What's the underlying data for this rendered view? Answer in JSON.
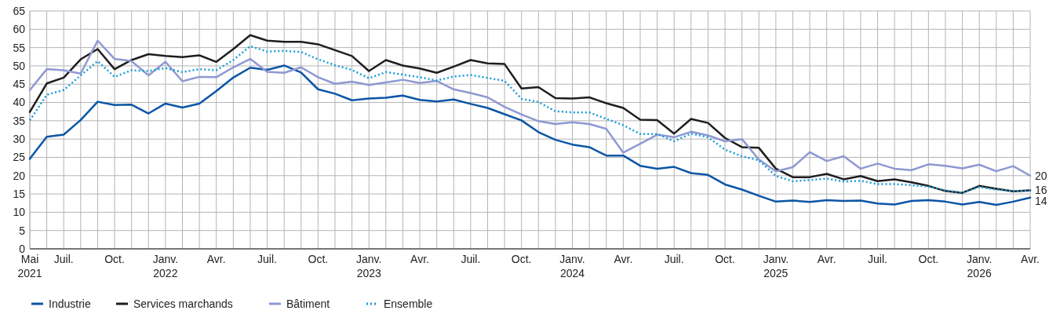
{
  "chart_data": {
    "type": "line",
    "categories": [
      "Mai\n2021",
      null,
      "Juil.",
      null,
      null,
      "Oct.",
      null,
      null,
      "Janv.\n2022",
      null,
      null,
      "Avr.",
      null,
      null,
      "Juil.",
      null,
      null,
      "Oct.",
      null,
      null,
      "Janv.\n2023",
      null,
      null,
      "Avr.",
      null,
      null,
      "Juil.",
      null,
      null,
      "Oct.",
      null,
      null,
      "Janv.\n2024",
      null,
      null,
      "Avr.",
      null,
      null,
      "Juil.",
      null,
      null,
      "Oct.",
      null,
      null,
      "Janv.\n2025",
      null,
      null,
      "Avr.",
      null,
      null,
      "Juil.",
      null,
      null,
      "Oct.",
      null,
      null,
      "Janv.\n2026",
      null,
      null,
      "Avr."
    ],
    "series": [
      {
        "name": "Industrie",
        "color": "#0b55a6",
        "values": [
          24.6,
          30.6,
          31.2,
          35.2,
          40.2,
          39.3,
          39.4,
          37.0,
          39.7,
          38.6,
          39.7,
          43.1,
          46.8,
          49.5,
          48.9,
          50.1,
          48.2,
          43.6,
          42.4,
          40.6,
          41.1,
          41.3,
          41.9,
          40.7,
          40.3,
          40.8,
          39.6,
          38.5,
          36.8,
          35.1,
          31.9,
          29.8,
          28.5,
          27.8,
          25.5,
          25.5,
          22.7,
          21.9,
          22.4,
          20.7,
          20.2,
          17.6,
          16.2,
          14.5,
          12.9,
          13.2,
          12.8,
          13.3,
          13.1,
          13.2,
          12.4,
          12.1,
          13.1,
          13.3,
          12.9,
          12.1,
          12.8,
          12.0,
          12.9,
          14
        ],
        "value_labels": [
          null,
          null,
          null,
          null,
          null,
          null,
          null,
          null,
          null,
          null,
          null,
          null,
          null,
          null,
          null,
          null,
          null,
          null,
          null,
          null,
          null,
          null,
          null,
          null,
          null,
          null,
          null,
          null,
          null,
          null,
          null,
          null,
          null,
          null,
          null,
          null,
          null,
          null,
          null,
          null,
          null,
          null,
          null,
          null,
          null,
          null,
          null,
          null,
          null,
          null,
          null,
          null,
          null,
          null,
          null,
          null,
          null,
          null,
          null,
          "14"
        ]
      },
      {
        "name": "Services marchands",
        "color": "#1e1e1e",
        "values": [
          37.4,
          45.2,
          46.8,
          51.8,
          54.6,
          49.1,
          51.6,
          53.2,
          52.7,
          52.4,
          52.9,
          51.1,
          54.6,
          58.4,
          56.9,
          56.6,
          56.6,
          55.9,
          54.3,
          52.7,
          48.6,
          51.6,
          50.1,
          49.3,
          48.1,
          49.8,
          51.6,
          50.7,
          50.5,
          43.8,
          44.2,
          41.2,
          41.1,
          41.4,
          39.8,
          38.5,
          35.3,
          35.2,
          31.5,
          35.5,
          34.4,
          30.3,
          27.8,
          27.6,
          21.9,
          19.6,
          19.6,
          20.5,
          19.0,
          19.9,
          18.5,
          19.0,
          18.2,
          17.2,
          15.8,
          15.3,
          17.2,
          16.4,
          15.7,
          16
        ],
        "value_labels": [
          null,
          null,
          null,
          null,
          null,
          null,
          null,
          null,
          null,
          null,
          null,
          null,
          null,
          null,
          null,
          null,
          null,
          null,
          null,
          null,
          null,
          null,
          null,
          null,
          null,
          null,
          null,
          null,
          null,
          null,
          null,
          null,
          null,
          null,
          null,
          null,
          null,
          null,
          null,
          null,
          null,
          null,
          null,
          null,
          null,
          null,
          null,
          null,
          null,
          null,
          null,
          null,
          null,
          null,
          null,
          null,
          null,
          null,
          null,
          "16"
        ]
      },
      {
        "name": "Bâtiment",
        "color": "#8e98d2",
        "values": [
          43.4,
          49.1,
          48.8,
          47.9,
          56.9,
          51.9,
          51.3,
          47.4,
          51.1,
          45.8,
          47.0,
          46.9,
          49.6,
          51.9,
          48.4,
          48.1,
          49.6,
          46.9,
          45.1,
          45.7,
          44.8,
          45.5,
          46.2,
          45.3,
          45.9,
          43.6,
          42.6,
          41.4,
          38.8,
          36.7,
          34.9,
          34.1,
          34.6,
          34.1,
          32.8,
          26.3,
          28.7,
          31.2,
          30.5,
          32.0,
          31.0,
          29.4,
          30.0,
          24.4,
          21.2,
          22.3,
          26.4,
          24.0,
          25.3,
          21.9,
          23.3,
          21.9,
          21.5,
          23.1,
          22.7,
          22.0,
          23.0,
          21.2,
          22.6,
          20
        ],
        "value_labels": [
          null,
          null,
          null,
          null,
          null,
          null,
          null,
          null,
          null,
          null,
          null,
          null,
          null,
          null,
          null,
          null,
          null,
          null,
          null,
          null,
          null,
          null,
          null,
          null,
          null,
          null,
          null,
          null,
          null,
          null,
          null,
          null,
          null,
          null,
          null,
          null,
          null,
          null,
          null,
          null,
          null,
          null,
          null,
          null,
          null,
          null,
          null,
          null,
          null,
          null,
          null,
          null,
          null,
          null,
          null,
          null,
          null,
          null,
          null,
          "20"
        ]
      },
      {
        "name": "Ensemble",
        "color": "#1a9dd9",
        "line_style": "dotted",
        "values": [
          35.1,
          42.1,
          43.4,
          47.4,
          51.3,
          47.0,
          48.8,
          48.6,
          49.4,
          48.3,
          49.1,
          48.8,
          51.6,
          55.4,
          53.9,
          54.1,
          53.8,
          51.8,
          50.2,
          48.9,
          46.6,
          48.3,
          47.6,
          46.9,
          46.0,
          47.1,
          47.5,
          46.7,
          45.9,
          41.0,
          40.1,
          37.6,
          37.3,
          37.3,
          35.5,
          33.8,
          31.4,
          31.4,
          29.4,
          31.5,
          30.5,
          27.1,
          25.3,
          24.2,
          19.9,
          18.5,
          18.8,
          19.2,
          18.4,
          18.6,
          17.7,
          17.7,
          17.4,
          17.0,
          16.0,
          15.3,
          16.9,
          16.2,
          15.8,
          15.9
        ]
      }
    ],
    "ylim": [
      0,
      65
    ],
    "yticks": [
      0,
      5,
      10,
      15,
      20,
      25,
      30,
      35,
      40,
      45,
      50,
      55,
      60,
      65
    ],
    "grid": true,
    "legend": "bottom",
    "line_style": "solid",
    "marker": "none"
  }
}
